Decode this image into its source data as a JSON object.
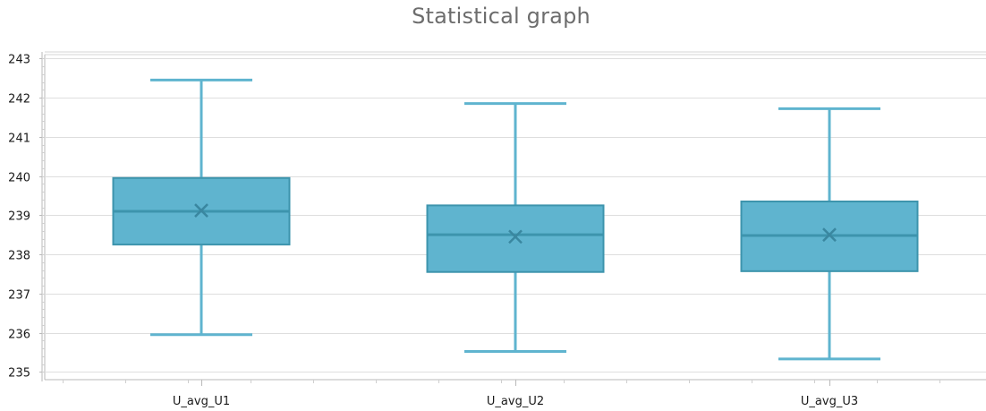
{
  "chart_data": {
    "type": "box",
    "title": "Statistical graph",
    "xlabel": "",
    "ylabel": "",
    "ylim": [
      234.8,
      243.1
    ],
    "yticks": [
      235,
      236,
      237,
      238,
      239,
      240,
      241,
      242,
      243
    ],
    "grid": true,
    "color": "#5fb4cf",
    "categories": [
      "U_avg_U1",
      "U_avg_U2",
      "U_avg_U3"
    ],
    "boxes": [
      {
        "name": "U_avg_U1",
        "min": 235.95,
        "q1": 238.25,
        "median": 239.1,
        "mean": 239.12,
        "q3": 239.95,
        "max": 242.45
      },
      {
        "name": "U_avg_U2",
        "min": 235.52,
        "q1": 237.55,
        "median": 238.5,
        "mean": 238.45,
        "q3": 239.25,
        "max": 241.85
      },
      {
        "name": "U_avg_U3",
        "min": 235.33,
        "q1": 237.57,
        "median": 238.48,
        "mean": 238.5,
        "q3": 239.35,
        "max": 241.72
      }
    ]
  }
}
